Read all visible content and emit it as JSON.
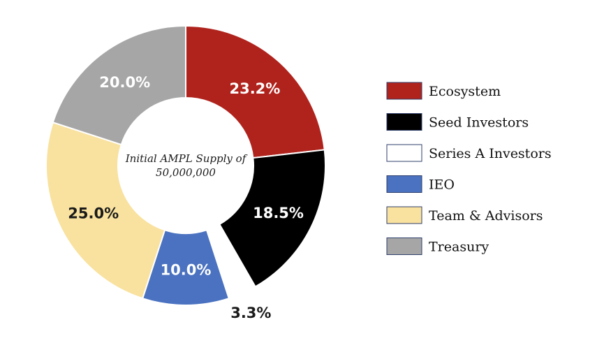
{
  "chart_data": {
    "type": "pie",
    "donut": true,
    "center_label": [
      "Initial AMPL Supply of",
      "50,000,000"
    ],
    "legend_position": "right",
    "slices": [
      {
        "label": "Ecosystem",
        "value": 23.2,
        "display": "23.2%",
        "color": "#b0231d",
        "label_color": "#ffffff"
      },
      {
        "label": "Seed Investors",
        "value": 18.5,
        "display": "18.5%",
        "color": "#000000",
        "label_color": "#ffffff"
      },
      {
        "label": "Series A Investors",
        "value": 3.3,
        "display": "3.3%",
        "color": "#ffffff",
        "label_color": "#1a1a1a"
      },
      {
        "label": "IEO",
        "value": 10.0,
        "display": "10.0%",
        "color": "#4a72c0",
        "label_color": "#ffffff"
      },
      {
        "label": "Team & Advisors",
        "value": 25.0,
        "display": "25.0%",
        "color": "#f9e29f",
        "label_color": "#1a1a1a"
      },
      {
        "label": "Treasury",
        "value": 20.0,
        "display": "20.0%",
        "color": "#a6a6a6",
        "label_color": "#ffffff"
      }
    ]
  }
}
